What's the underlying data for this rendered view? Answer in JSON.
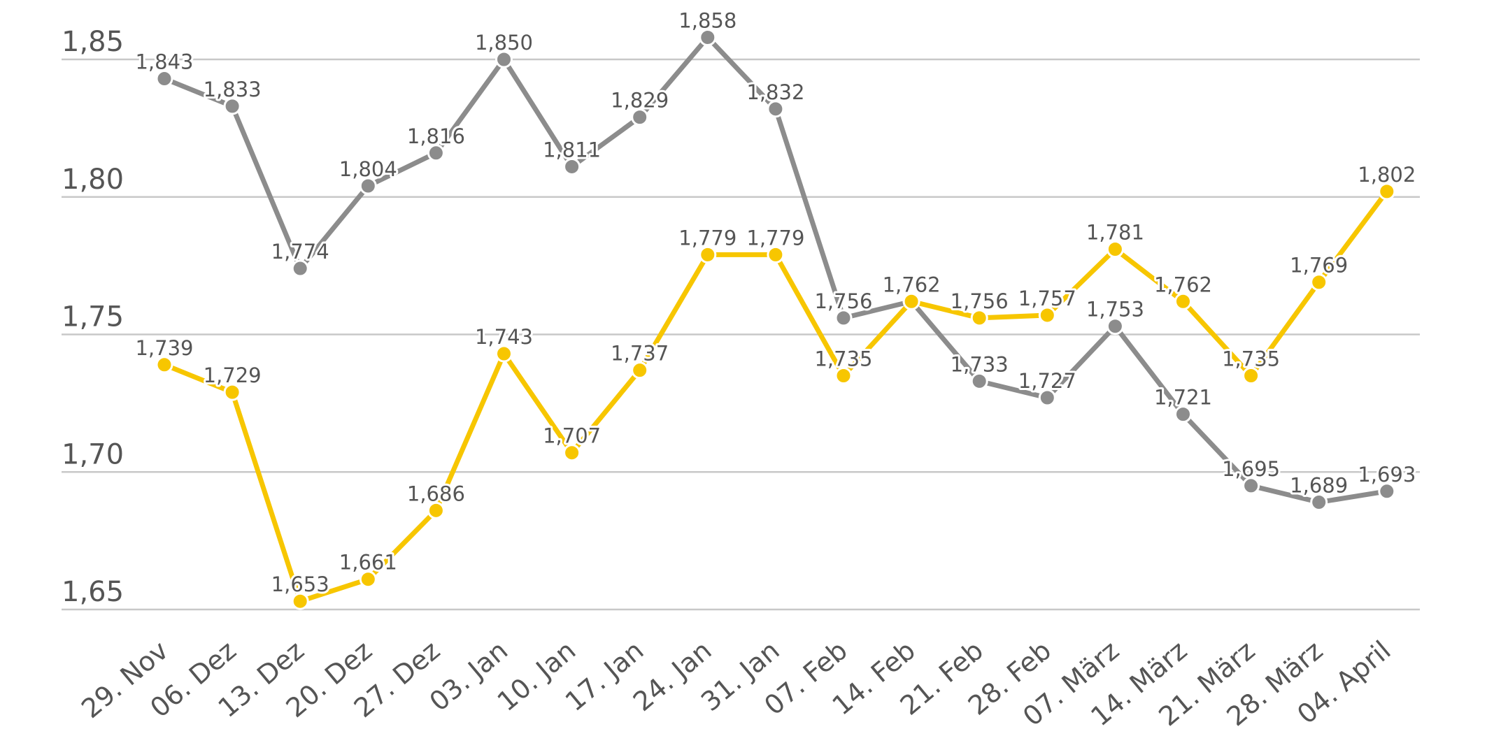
{
  "chart_data": {
    "type": "line",
    "title": "",
    "xlabel": "",
    "ylabel": "",
    "ylim": [
      1.65,
      1.85
    ],
    "yticks": [
      1.65,
      1.7,
      1.75,
      1.8,
      1.85
    ],
    "ytick_labels": [
      "1,65",
      "1,70",
      "1,75",
      "1,80",
      "1,85"
    ],
    "grid": true,
    "legend": "none",
    "categories": [
      "29. Nov",
      "06. Dez",
      "13. Dez",
      "20. Dez",
      "27. Dez",
      "03. Jan",
      "10. Jan",
      "17. Jan",
      "24. Jan",
      "31. Jan",
      "07. Feb",
      "14. Feb",
      "21. Feb",
      "28. Feb",
      "07. März",
      "14. März",
      "21. März",
      "28. März",
      "04. April"
    ],
    "series": [
      {
        "name": "gray",
        "color": "#8c8c8c",
        "values": [
          1.843,
          1.833,
          1.774,
          1.804,
          1.816,
          1.85,
          1.811,
          1.829,
          1.858,
          1.832,
          1.756,
          1.762,
          1.733,
          1.727,
          1.753,
          1.721,
          1.695,
          1.689,
          1.693
        ],
        "labels": [
          "1,843",
          "1,833",
          "1,774",
          "1,804",
          "1,816",
          "1,850",
          "1,811",
          "1,829",
          "1,858",
          "1,832",
          "1,756",
          "1,762",
          "1,733",
          "1,727",
          "1,753",
          "1,721",
          "1,695",
          "1,689",
          "1,693"
        ]
      },
      {
        "name": "yellow",
        "color": "#f7c600",
        "values": [
          1.739,
          1.729,
          1.653,
          1.661,
          1.686,
          1.743,
          1.707,
          1.737,
          1.779,
          1.779,
          1.735,
          1.762,
          1.756,
          1.757,
          1.781,
          1.762,
          1.735,
          1.769,
          1.802
        ],
        "labels": [
          "1,739",
          "1,729",
          "1,653",
          "1,661",
          "1,686",
          "1,743",
          "1,707",
          "1,737",
          "1,779",
          "1,779",
          "1,735",
          "1,762",
          "1,756",
          "1,757",
          "1,781",
          "1,762",
          "1,735",
          "1,769",
          "1,802"
        ]
      }
    ]
  }
}
